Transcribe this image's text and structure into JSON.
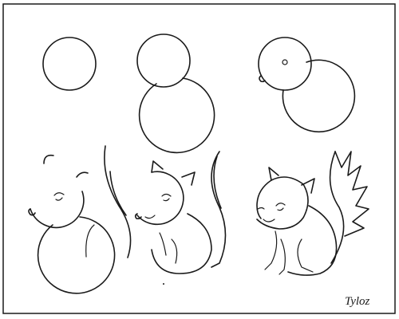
{
  "signature": "Tyloz"
}
